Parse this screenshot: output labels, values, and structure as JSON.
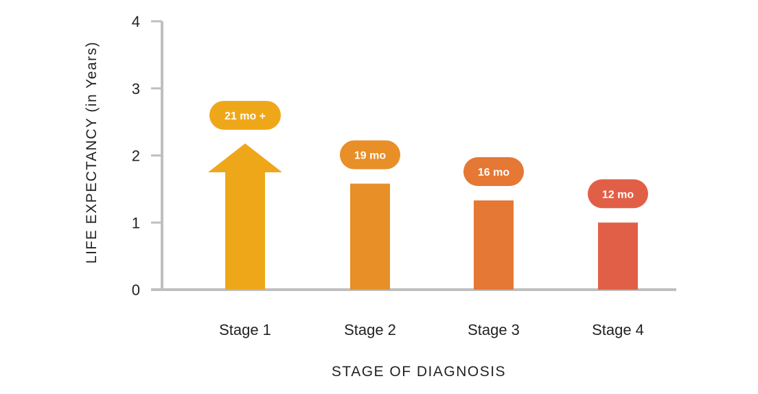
{
  "chart_data": {
    "type": "bar",
    "xlabel": "STAGE OF DIAGNOSIS",
    "ylabel": "LIFE EXPECTANCY  (in Years)",
    "ylim": [
      0,
      4
    ],
    "yticks": [
      0,
      1,
      2,
      3,
      4
    ],
    "grid": false,
    "categories": [
      "Stage 1",
      "Stage 2",
      "Stage 3",
      "Stage 4"
    ],
    "values": [
      1.75,
      1.58,
      1.33,
      1.0
    ],
    "value_labels": [
      "21 mo +",
      "19 mo",
      "16 mo",
      "12 mo"
    ],
    "open_ended": [
      true,
      false,
      false,
      false
    ],
    "colors": [
      "#EFA71A",
      "#E88F28",
      "#E57834",
      "#E25F47"
    ]
  }
}
